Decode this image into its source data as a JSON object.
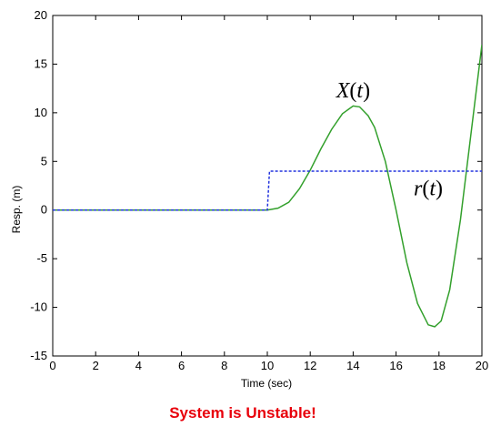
{
  "chart_data": {
    "type": "line",
    "title": "",
    "xlabel": "Time (sec)",
    "ylabel": "Resp. (m)",
    "xlim": [
      0,
      20
    ],
    "ylim": [
      -15,
      20
    ],
    "xticks": [
      0,
      2,
      4,
      6,
      8,
      10,
      12,
      14,
      16,
      18,
      20
    ],
    "yticks": [
      -15,
      -10,
      -5,
      0,
      5,
      10,
      15,
      20
    ],
    "grid": false,
    "legend": "none",
    "series": [
      {
        "name": "X(t)",
        "color": "#33a02c",
        "style": "solid",
        "x": [
          0,
          10,
          10.5,
          11,
          11.5,
          12,
          12.5,
          13,
          13.5,
          14,
          14.3,
          14.7,
          15,
          15.5,
          16,
          16.5,
          17,
          17.5,
          17.8,
          18.1,
          18.5,
          19,
          19.5,
          20
        ],
        "y": [
          0,
          0,
          0.2,
          0.8,
          2.2,
          4.1,
          6.3,
          8.3,
          9.9,
          10.7,
          10.6,
          9.7,
          8.5,
          5.0,
          0.0,
          -5.4,
          -9.6,
          -11.8,
          -12.0,
          -11.4,
          -8.2,
          -1.0,
          8.0,
          17.0
        ]
      },
      {
        "name": "r(t)",
        "color": "#2233dd",
        "style": "dashed",
        "x": [
          0,
          10,
          10.1,
          20
        ],
        "y": [
          0,
          0,
          4,
          4
        ]
      }
    ],
    "annotations": [
      {
        "text": "X(t)",
        "x": 14.0,
        "y": 11.6
      },
      {
        "text": "r(t)",
        "x": 17.5,
        "y": 1.5
      }
    ]
  },
  "footer_text": "System is Unstable!"
}
